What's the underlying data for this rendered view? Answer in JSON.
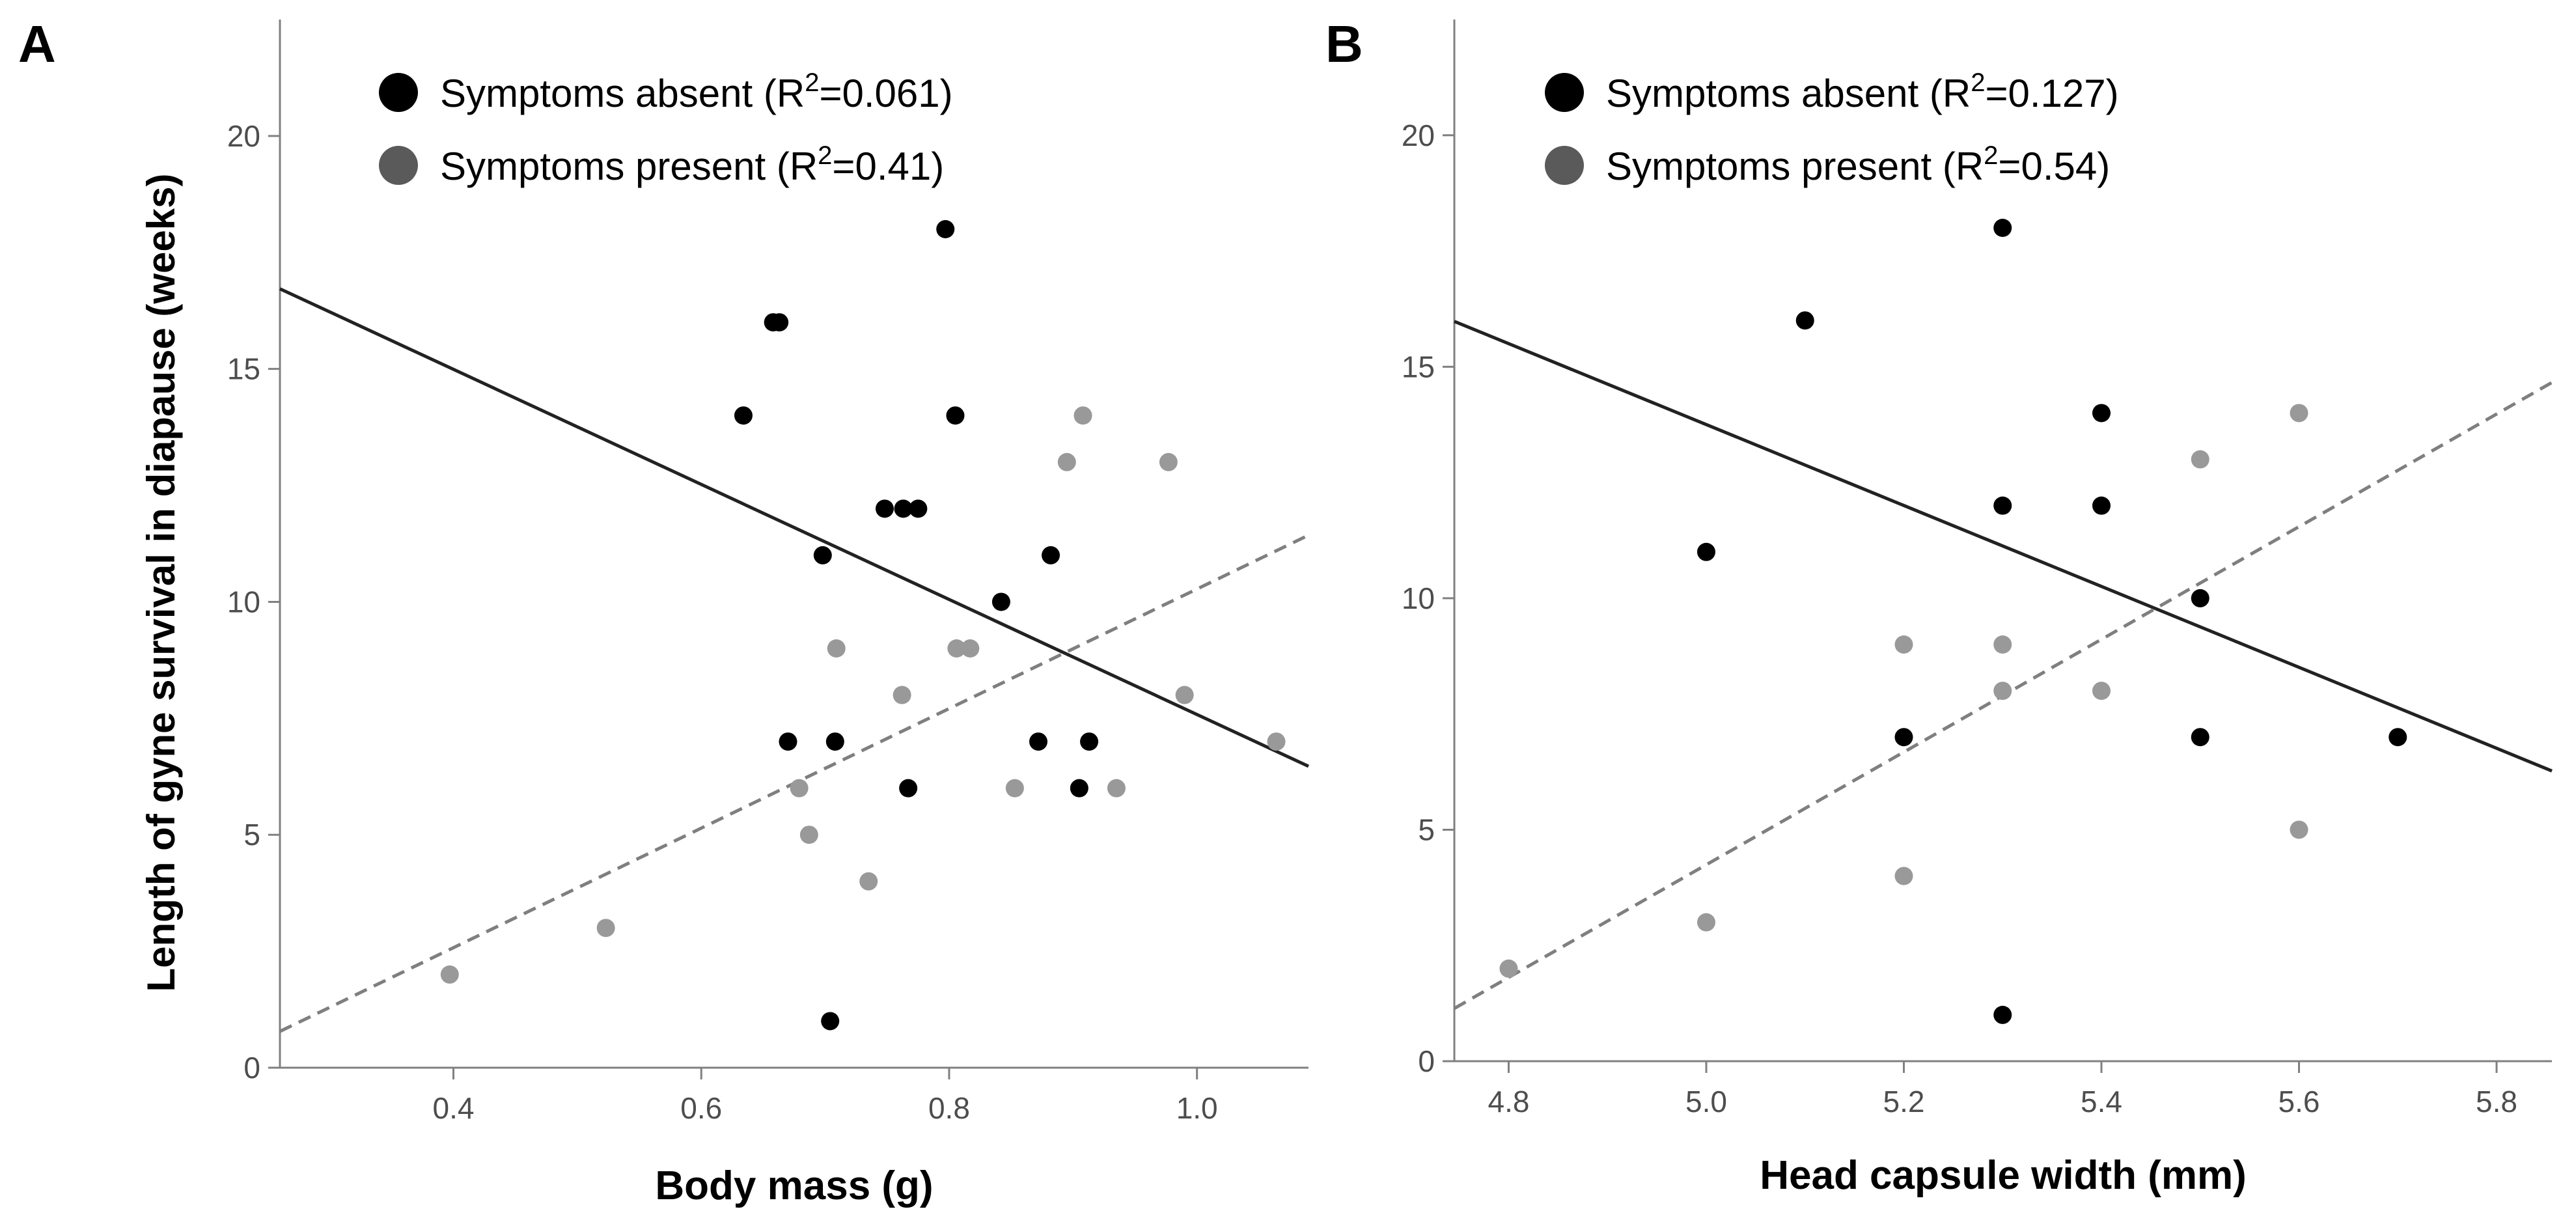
{
  "colors": {
    "absent": "#000000",
    "present": "#999999",
    "legend_present": "#5a5a5a",
    "axis": "#808080",
    "tick_text": "#4d4d4d",
    "label_text": "#000000"
  },
  "chart_data": [
    {
      "panel_letter": "A",
      "type": "scatter",
      "xlabel": "Body mass (g)",
      "ylabel": "Length of gyne survival in diapause (weeks)",
      "xlim": [
        0.26,
        1.09
      ],
      "ylim": [
        0,
        22.5
      ],
      "xticks": [
        0.4,
        0.6,
        0.8,
        1.0
      ],
      "xtick_labels": [
        "0.4",
        "0.6",
        "0.8",
        "1.0"
      ],
      "yticks": [
        0,
        5,
        10,
        15,
        20
      ],
      "ytick_labels": [
        "0",
        "5",
        "10",
        "15",
        "20"
      ],
      "legend_position": "top-left",
      "grid": false,
      "series": [
        {
          "key": "absent",
          "legend_label": "Symptoms absent (R",
          "legend_sup": "2",
          "legend_tail": "=0.061)",
          "points": [
            [
              0.634,
              14
            ],
            [
              0.658,
              16
            ],
            [
              0.663,
              16
            ],
            [
              0.698,
              11
            ],
            [
              0.67,
              7
            ],
            [
              0.708,
              7
            ],
            [
              0.704,
              1
            ],
            [
              0.748,
              12
            ],
            [
              0.763,
              12
            ],
            [
              0.775,
              12
            ],
            [
              0.767,
              6
            ],
            [
              0.797,
              18
            ],
            [
              0.805,
              14
            ],
            [
              0.842,
              10
            ],
            [
              0.872,
              7
            ],
            [
              0.882,
              11
            ],
            [
              0.905,
              6
            ],
            [
              0.913,
              7
            ]
          ],
          "fit": {
            "x": [
              0.26,
              1.09
            ],
            "y": [
              16.72,
              6.47
            ]
          }
        },
        {
          "key": "present",
          "legend_label": "Symptoms present (R",
          "legend_sup": "2",
          "legend_tail": "=0.41)",
          "points": [
            [
              0.397,
              2
            ],
            [
              0.523,
              3
            ],
            [
              0.679,
              6
            ],
            [
              0.687,
              5
            ],
            [
              0.709,
              9
            ],
            [
              0.735,
              4
            ],
            [
              0.762,
              8
            ],
            [
              0.806,
              9
            ],
            [
              0.817,
              9
            ],
            [
              0.853,
              6
            ],
            [
              0.895,
              13
            ],
            [
              0.908,
              14
            ],
            [
              0.935,
              6
            ],
            [
              0.977,
              13
            ],
            [
              0.99,
              8
            ],
            [
              1.064,
              7
            ]
          ],
          "fit": {
            "x": [
              0.26,
              1.09
            ],
            "y": [
              0.78,
              11.43
            ]
          }
        }
      ]
    },
    {
      "panel_letter": "B",
      "type": "scatter",
      "xlabel": "Head capsule width (mm)",
      "ylabel": "",
      "xlim": [
        4.745,
        5.856
      ],
      "ylim": [
        0,
        22.5
      ],
      "xticks": [
        4.8,
        5.0,
        5.2,
        5.4,
        5.6,
        5.8
      ],
      "xtick_labels": [
        "4.8",
        "5.0",
        "5.2",
        "5.4",
        "5.6",
        "5.8"
      ],
      "yticks": [
        0,
        5,
        10,
        15,
        20
      ],
      "ytick_labels": [
        "0",
        "5",
        "10",
        "15",
        "20"
      ],
      "legend_position": "top-left",
      "grid": false,
      "series": [
        {
          "key": "absent",
          "legend_label": "Symptoms absent (R",
          "legend_sup": "2",
          "legend_tail": "=0.127)",
          "points": [
            [
              5.0,
              11
            ],
            [
              5.1,
              16
            ],
            [
              5.2,
              7
            ],
            [
              5.3,
              18
            ],
            [
              5.3,
              12
            ],
            [
              5.3,
              1
            ],
            [
              5.4,
              14
            ],
            [
              5.4,
              12
            ],
            [
              5.5,
              10
            ],
            [
              5.5,
              7
            ],
            [
              5.7,
              7
            ]
          ],
          "fit": {
            "x": [
              4.745,
              5.856
            ],
            "y": [
              15.98,
              6.27
            ]
          }
        },
        {
          "key": "present",
          "legend_label": "Symptoms present (R",
          "legend_sup": "2",
          "legend_tail": "=0.54)",
          "points": [
            [
              4.8,
              2
            ],
            [
              5.0,
              3
            ],
            [
              5.2,
              9
            ],
            [
              5.2,
              4
            ],
            [
              5.3,
              9
            ],
            [
              5.3,
              8
            ],
            [
              5.4,
              8
            ],
            [
              5.5,
              13
            ],
            [
              5.6,
              14
            ],
            [
              5.6,
              5
            ]
          ],
          "fit": {
            "x": [
              4.745,
              5.856
            ],
            "y": [
              1.14,
              14.66
            ]
          }
        }
      ]
    }
  ]
}
